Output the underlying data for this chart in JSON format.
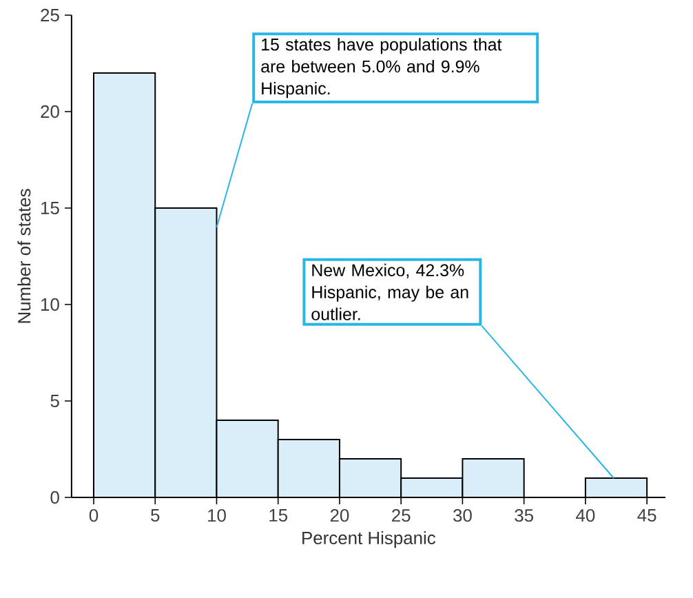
{
  "chart_data": {
    "type": "histogram",
    "xlabel": "Percent Hispanic",
    "ylabel": "Number of states",
    "bins": [
      0,
      5,
      10,
      15,
      20,
      25,
      30,
      35,
      40,
      45
    ],
    "values": [
      22,
      15,
      4,
      3,
      2,
      1,
      2,
      0,
      1
    ],
    "color": "#d9eef9",
    "xlim": [
      -1.8,
      46.5
    ],
    "ylim": [
      0,
      25
    ],
    "xticks": [
      0,
      5,
      10,
      15,
      20,
      25,
      30,
      35,
      40,
      45
    ],
    "yticks": [
      0,
      5,
      10,
      15,
      20,
      25
    ],
    "grid": false,
    "annotations": [
      {
        "text": "15 states have populations that are between 5.0% and 9.9% Hispanic.",
        "x": 10,
        "y": 14
      },
      {
        "text": "New Mexico, 42.3% Hispanic, may be an outlier.",
        "x": 42.3,
        "y": 1
      }
    ]
  }
}
